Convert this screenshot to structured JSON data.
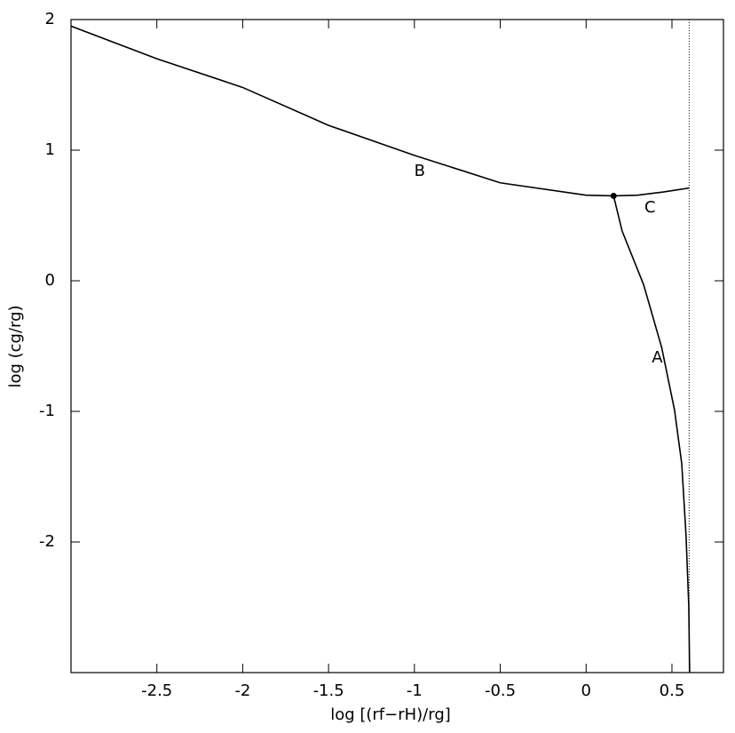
{
  "chart_data": {
    "type": "line",
    "xlabel": "log [(rf−rH)/rg]",
    "ylabel": "log (cg/rg)",
    "xlim": [
      -3,
      0.8
    ],
    "ylim": [
      -3,
      2
    ],
    "xticks": [
      -2.5,
      -2,
      -1.5,
      -1,
      -0.5,
      0,
      0.5
    ],
    "yticks": [
      -2,
      -1,
      0,
      1,
      2
    ],
    "reference_x": 0.6,
    "color": "#000000",
    "series": [
      {
        "name": "B",
        "x": [
          -3,
          -2.5,
          -2,
          -1.5,
          -1,
          -0.5,
          0,
          0.16
        ],
        "y": [
          1.95,
          1.7,
          1.48,
          1.19,
          0.96,
          0.75,
          0.655,
          0.65
        ]
      },
      {
        "name": "C",
        "x": [
          0.16,
          0.3,
          0.45,
          0.6
        ],
        "y": [
          0.65,
          0.655,
          0.68,
          0.71
        ]
      },
      {
        "name": "A",
        "x": [
          0.16,
          0.21,
          0.335,
          0.44,
          0.515,
          0.557,
          0.582,
          0.598,
          0.603
        ],
        "y": [
          0.65,
          0.38,
          -0.03,
          -0.51,
          -0.99,
          -1.4,
          -1.95,
          -2.49,
          -3
        ]
      }
    ]
  }
}
